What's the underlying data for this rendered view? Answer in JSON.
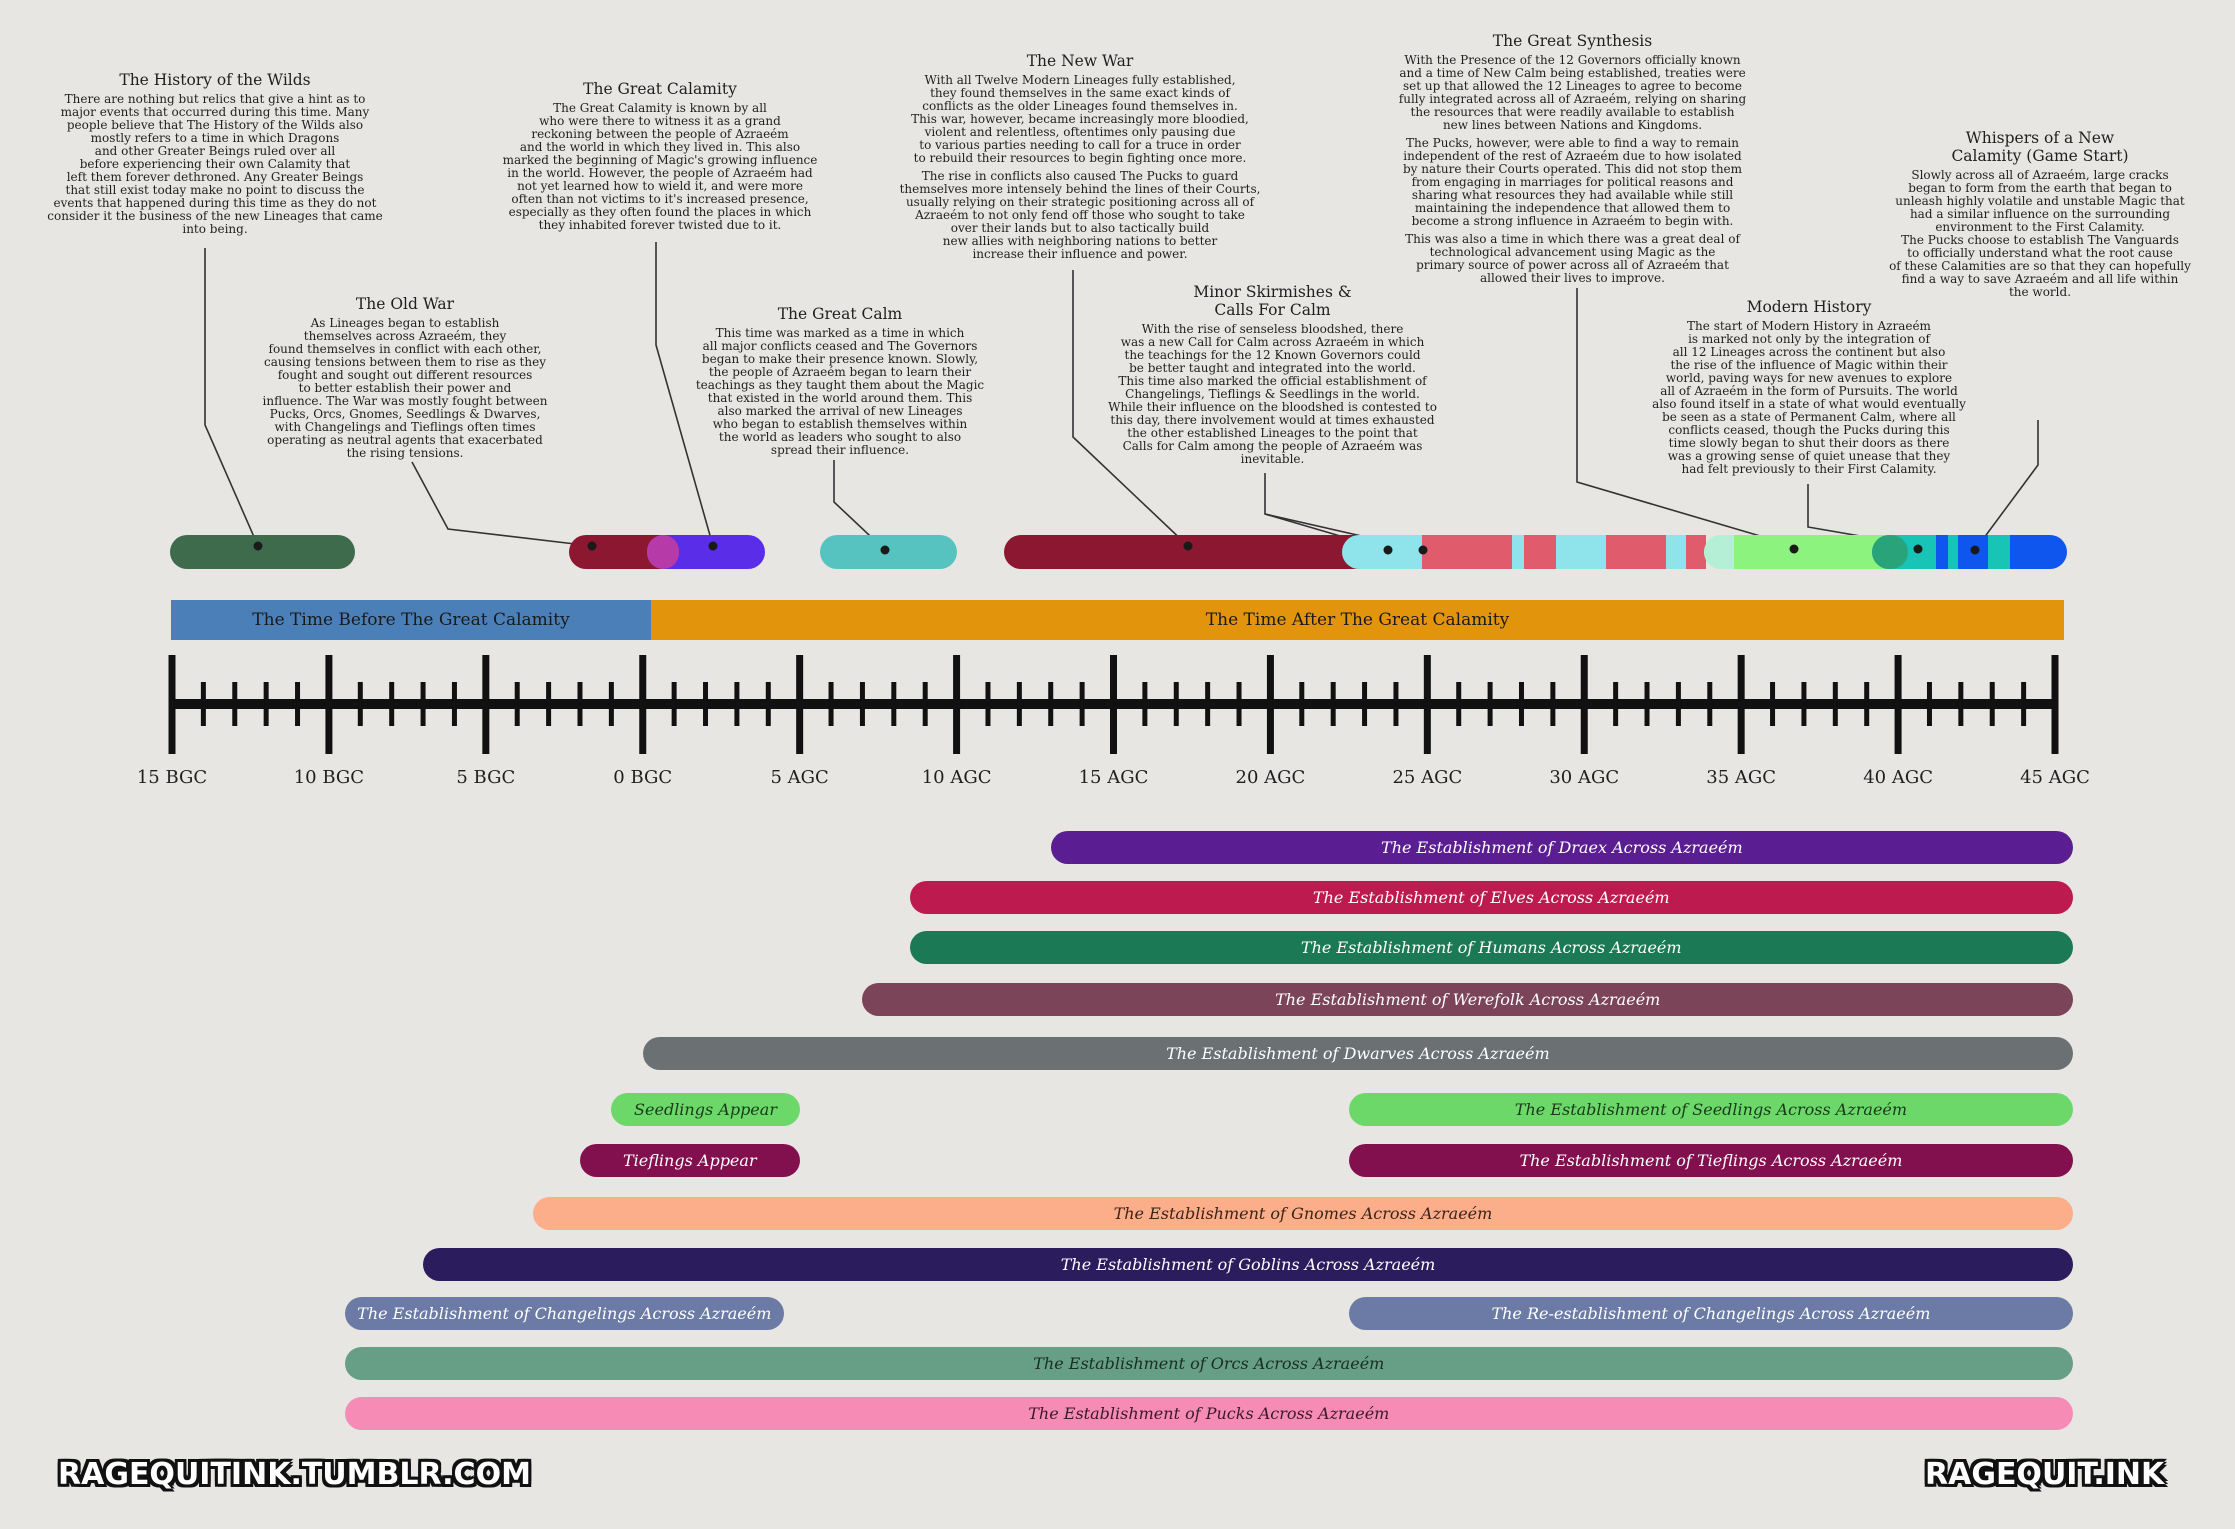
{
  "annotations": [
    {
      "id": "history-of-the-wilds",
      "title": "The History of the Wilds",
      "paragraphs": [
        "There are nothing but relics that give  a hint as to\nmajor events that occurred during this time. Many\npeople believe that The History of the Wilds also\nmostly refers to a time in which Dragons\nand other Greater Beings ruled over all\nbefore experiencing their own Calamity that\nleft them forever dethroned. Any Greater Beings\nthat still exist today make no point to discuss the\nevents that happened during this time as they do not\nconsider it the business of the new Lineages that came\ninto being."
      ]
    },
    {
      "id": "old-war",
      "title": "The Old War",
      "paragraphs": [
        "As Lineages began to establish\nthemselves across Azraeém, they\nfound themselves in conflict with each other,\ncausing tensions between them to rise as they\nfought and sought out different resources\nto better establish their power and\ninfluence. The War was mostly fought between\nPucks, Orcs, Gnomes, Seedlings & Dwarves,\nwith Changelings and Tieflings often times\noperating as neutral agents that exacerbated\nthe rising tensions."
      ]
    },
    {
      "id": "great-calamity",
      "title": "The Great Calamity",
      "paragraphs": [
        "The Great Calamity is known by all\nwho were there to witness it as a grand\nreckoning between the people of Azraeém\nand the world in which they lived in. This also\nmarked the beginning of Magic's growing influence\nin the world. However, the people of Azraeém had\nnot yet learned how to wield it, and were more\noften than not victims to it's increased presence,\nespecially as they often found the places in which\nthey inhabited forever twisted due to it."
      ]
    },
    {
      "id": "great-calm",
      "title": "The Great Calm",
      "paragraphs": [
        "This time was marked as a time in which\nall major conflicts ceased and The Governors\nbegan to make their presence known. Slowly,\nthe people of Azraeém began to learn their\nteachings as they taught them about the Magic\nthat existed in the world around them. This\nalso marked the arrival of new Lineages\nwho began to establish themselves within\nthe world as leaders who sought to also\nspread their influence."
      ]
    },
    {
      "id": "new-war",
      "title": "The New War",
      "paragraphs": [
        "With all Twelve Modern Lineages fully established,\nthey found themselves in the same exact kinds of\nconflicts as the older Lineages found themselves in.\nThis war, however, became increasingly more bloodied,\nviolent and relentless, oftentimes only pausing due\nto various parties needing to call for a truce in order\nto rebuild their resources to begin fighting once more.",
        "The rise in conflicts also caused The Pucks to guard\nthemselves more intensely behind the lines of their Courts,\nusually relying on their strategic positioning across all of\nAzraeém to not only fend off those who sought to take\nover their lands but to also tactically build\nnew allies with neighboring nations to better\nincrease their influence and power."
      ]
    },
    {
      "id": "minor-skirmishes",
      "title": "Minor Skirmishes &\nCalls For Calm",
      "paragraphs": [
        "With the rise of senseless bloodshed, there\nwas a new Call for Calm across Azraeém in which\nthe teachings for the 12 Known Governors could\nbe better taught and integrated into the world.\nThis time also marked the official establishment of\nChangelings, Tieflings & Seedlings in the world.\nWhile their influence on the bloodshed is contested to\nthis day, there involvement would at times exhausted\nthe other established Lineages to the point that\nCalls for Calm among the people of Azraeém was\ninevitable."
      ]
    },
    {
      "id": "great-synthesis",
      "title": "The Great Synthesis",
      "paragraphs": [
        "With the Presence of the 12 Governors officially known\nand a time of New Calm being established, treaties were\nset up that allowed the 12 Lineages to agree to become\nfully integrated across all of Azraeém, relying on sharing\nthe resources that were readily available to establish\nnew lines between Nations and Kingdoms.",
        "The Pucks, however, were able to find a way to remain\nindependent of the rest of Azraeém due to how isolated\nby nature their Courts operated. This did not stop them\nfrom engaging in marriages for political reasons and\nsharing what resources they had available while still\nmaintaining the independence that allowed them to\nbecome a strong influence in Azraeém to begin with.",
        "This was also a time in which there was a great deal of\ntechnological advancement using Magic as the\nprimary source of power across all of Azraeém that\nallowed their lives to improve."
      ]
    },
    {
      "id": "modern-history",
      "title": "Modern History",
      "paragraphs": [
        "The start of Modern History in Azraeém\nis marked not only by the integration of\nall 12 Lineages across the continent but also\nthe rise of the influence of Magic within their\nworld, paving ways  for new avenues to explore\nall of Azraeém in the form of Pursuits. The world\nalso found itself in a state of what would eventually\nbe seen as a state of Permanent Calm, where all\nconflicts ceased, though the Pucks during this\ntime slowly began to shut their doors as there\nwas a growing sense of quiet unease that they\nhad felt previously to their First Calamity."
      ]
    },
    {
      "id": "whispers",
      "title": "Whispers of a New\nCalamity (Game Start)",
      "paragraphs": [
        "Slowly across all of Azraeém, large cracks\nbegan to form from the earth that began to\nunleash highly volatile and unstable Magic that\nhad a similar influence on the surrounding\nenvironment to the First Calamity.\nThe Pucks choose to establish The Vanguards\nto officially understand what the root cause\nof these Calamities are so that they can hopefully\nfind a way to save Azraeém and all life within\nthe world."
      ]
    }
  ],
  "eras": [
    {
      "label": "The Time Before The Great Calamity",
      "color": "#4a7fb8"
    },
    {
      "label": "The Time After The Great Calamity",
      "color": "#e2950c"
    }
  ],
  "ruler": {
    "labels": [
      "15 BGC",
      "10 BGC",
      "5 BGC",
      "0 BGC",
      "5 AGC",
      "10 AGC",
      "15 AGC",
      "20 AGC",
      "25 AGC",
      "30 AGC",
      "35 AGC",
      "40 AGC",
      "45 AGC"
    ]
  },
  "lineage_bars": [
    {
      "label": "The Establishment of Draex Across Azraeém",
      "start": 13,
      "end": 46,
      "color": "#5b1e92"
    },
    {
      "label": "The Establishment of Elves Across Azraeém",
      "start": 8.5,
      "end": 46,
      "color": "#bd1a50"
    },
    {
      "label": "The Establishment of Humans Across Azraeém",
      "start": 8.5,
      "end": 46,
      "color": "#1b7a55"
    },
    {
      "label": "The Establishment of Werefolk Across Azraeém",
      "start": 7,
      "end": 46,
      "color": "#7b4458"
    },
    {
      "label": "The Establishment of Dwarves Across Azraeém",
      "start": 0,
      "end": 46,
      "color": "#6b7172"
    },
    {
      "label": "Seedlings Appear",
      "start": -1,
      "end": 5,
      "color": "#6cd86a",
      "text_color": "#1a3a1a"
    },
    {
      "label": "The Establishment of Seedlings Across Azraeém",
      "start": 22.5,
      "end": 46,
      "color": "#6cd86a",
      "text_color": "#1a3a1a"
    },
    {
      "label": "Tieflings Appear",
      "start": -2,
      "end": 5,
      "color": "#83104e"
    },
    {
      "label": "The Establishment of Tieflings Across Azraeém",
      "start": 22.5,
      "end": 46,
      "color": "#83104e"
    },
    {
      "label": "The Establishment of Gnomes Across Azraeém",
      "start": -3.5,
      "end": 46,
      "color": "#fcad8a",
      "text_color": "#3a2418"
    },
    {
      "label": "The Establishment of Goblins Across Azraeém",
      "start": -7,
      "end": 46,
      "color": "#2b1c5e"
    },
    {
      "label": "The Establishment of Changelings Across Azraeém",
      "start": -9.5,
      "end": 4.5,
      "color": "#6b7ba6"
    },
    {
      "label": "The Re-establishment of Changelings Across Azraeém",
      "start": 22.5,
      "end": 46,
      "color": "#6b7ba6"
    },
    {
      "label": "The Establishment of Orcs Across Azraeém",
      "start": -9.5,
      "end": 46,
      "color": "#669e86",
      "text_color": "#1a2e24"
    },
    {
      "label": "The Establishment of Pucks Across Azraeém",
      "start": -9.5,
      "end": 46,
      "color": "#f68cb6",
      "text_color": "#3a1a26"
    }
  ],
  "watermarks": {
    "left": "RAGEQUITINK.TUMBLR.COM",
    "right": "RAGEQUIT.INK"
  }
}
